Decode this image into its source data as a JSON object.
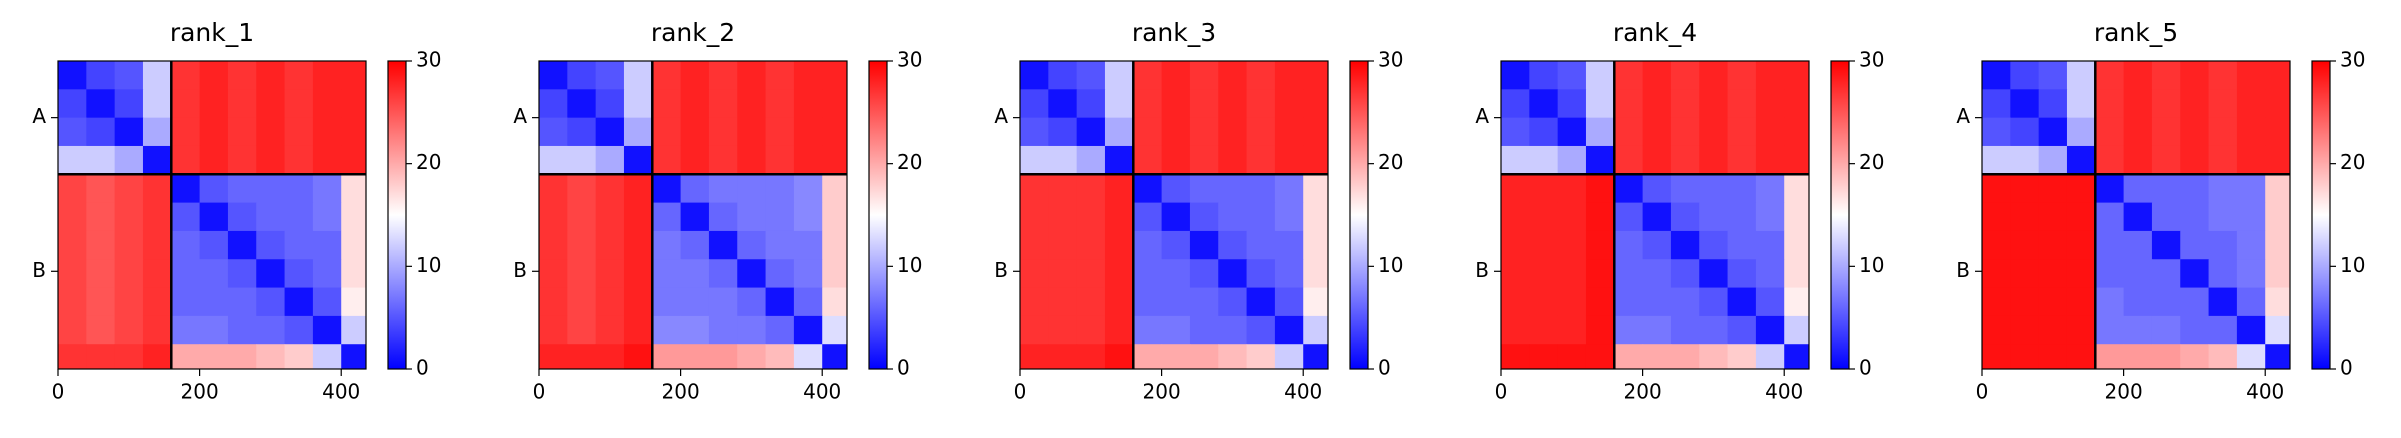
{
  "chart_data": [
    {
      "type": "heatmap",
      "title": "rank_1",
      "xlim": [
        0,
        435
      ],
      "ylim": [
        435,
        0
      ],
      "xticks": [
        0,
        200,
        400
      ],
      "yticks": [
        {
          "value": 80,
          "label": "A"
        },
        {
          "value": 297,
          "label": "B"
        }
      ],
      "chain_breaks": [
        160
      ],
      "clim": [
        0,
        30
      ],
      "cticks": [
        0,
        10,
        20,
        30
      ],
      "cmap": [
        "#0000ff",
        "#ffffff",
        "#ff0000"
      ],
      "bins": [
        0,
        40,
        80,
        120,
        160,
        200,
        240,
        280,
        320,
        360,
        400,
        435
      ],
      "values": [
        [
          1,
          4,
          5,
          12,
          27,
          28,
          27,
          28,
          27,
          28,
          28
        ],
        [
          4,
          1,
          4,
          12,
          27,
          28,
          27,
          28,
          27,
          28,
          28
        ],
        [
          5,
          4,
          1,
          10,
          27,
          28,
          27,
          28,
          27,
          28,
          28
        ],
        [
          12,
          12,
          10,
          1,
          27,
          28,
          27,
          28,
          27,
          28,
          28
        ],
        [
          26,
          25,
          26,
          27,
          1,
          5,
          6,
          6,
          6,
          7,
          17
        ],
        [
          26,
          25,
          26,
          27,
          5,
          1,
          5,
          6,
          6,
          7,
          17
        ],
        [
          26,
          25,
          26,
          27,
          6,
          5,
          1,
          5,
          6,
          6,
          17
        ],
        [
          26,
          25,
          26,
          27,
          6,
          6,
          5,
          1,
          5,
          6,
          17
        ],
        [
          26,
          25,
          26,
          27,
          6,
          6,
          6,
          5,
          1,
          5,
          16
        ],
        [
          26,
          25,
          26,
          27,
          7,
          7,
          6,
          6,
          5,
          1,
          12
        ],
        [
          27,
          27,
          27,
          28,
          20,
          20,
          20,
          19,
          18,
          12,
          1
        ]
      ]
    },
    {
      "type": "heatmap",
      "title": "rank_2",
      "xlim": [
        0,
        435
      ],
      "ylim": [
        435,
        0
      ],
      "xticks": [
        0,
        200,
        400
      ],
      "yticks": [
        {
          "value": 80,
          "label": "A"
        },
        {
          "value": 297,
          "label": "B"
        }
      ],
      "chain_breaks": [
        160
      ],
      "clim": [
        0,
        30
      ],
      "cticks": [
        0,
        10,
        20,
        30
      ],
      "cmap": [
        "#0000ff",
        "#ffffff",
        "#ff0000"
      ],
      "bins": [
        0,
        40,
        80,
        120,
        160,
        200,
        240,
        280,
        320,
        360,
        400,
        435
      ],
      "values": [
        [
          1,
          4,
          5,
          12,
          27,
          28,
          27,
          28,
          27,
          28,
          28
        ],
        [
          4,
          1,
          4,
          12,
          27,
          28,
          27,
          28,
          27,
          28,
          28
        ],
        [
          5,
          4,
          1,
          10,
          27,
          28,
          27,
          28,
          27,
          28,
          28
        ],
        [
          12,
          12,
          10,
          1,
          27,
          28,
          27,
          28,
          27,
          28,
          28
        ],
        [
          27,
          26,
          27,
          28,
          1,
          6,
          7,
          7,
          7,
          8,
          18
        ],
        [
          27,
          26,
          27,
          28,
          6,
          1,
          6,
          7,
          7,
          8,
          18
        ],
        [
          27,
          26,
          27,
          28,
          7,
          6,
          1,
          6,
          7,
          7,
          18
        ],
        [
          27,
          26,
          27,
          28,
          7,
          7,
          6,
          1,
          6,
          7,
          18
        ],
        [
          27,
          26,
          27,
          28,
          7,
          7,
          7,
          6,
          1,
          6,
          17
        ],
        [
          27,
          26,
          27,
          28,
          8,
          8,
          7,
          7,
          6,
          1,
          13
        ],
        [
          28,
          28,
          28,
          29,
          21,
          21,
          21,
          20,
          19,
          13,
          1
        ]
      ]
    },
    {
      "type": "heatmap",
      "title": "rank_3",
      "xlim": [
        0,
        435
      ],
      "ylim": [
        435,
        0
      ],
      "xticks": [
        0,
        200,
        400
      ],
      "yticks": [
        {
          "value": 80,
          "label": "A"
        },
        {
          "value": 297,
          "label": "B"
        }
      ],
      "chain_breaks": [
        160
      ],
      "clim": [
        0,
        30
      ],
      "cticks": [
        0,
        10,
        20,
        30
      ],
      "cmap": [
        "#0000ff",
        "#ffffff",
        "#ff0000"
      ],
      "bins": [
        0,
        40,
        80,
        120,
        160,
        200,
        240,
        280,
        320,
        360,
        400,
        435
      ],
      "values": [
        [
          1,
          4,
          5,
          12,
          27,
          28,
          27,
          28,
          27,
          28,
          28
        ],
        [
          4,
          1,
          4,
          12,
          27,
          28,
          27,
          28,
          27,
          28,
          28
        ],
        [
          5,
          4,
          1,
          10,
          27,
          28,
          27,
          28,
          27,
          28,
          28
        ],
        [
          12,
          12,
          10,
          1,
          27,
          28,
          27,
          28,
          27,
          28,
          28
        ],
        [
          27,
          27,
          27,
          28,
          1,
          5,
          6,
          6,
          6,
          7,
          17
        ],
        [
          27,
          27,
          27,
          28,
          5,
          1,
          5,
          6,
          6,
          7,
          17
        ],
        [
          27,
          27,
          27,
          28,
          6,
          5,
          1,
          5,
          6,
          6,
          17
        ],
        [
          27,
          27,
          27,
          28,
          6,
          6,
          5,
          1,
          5,
          6,
          17
        ],
        [
          27,
          27,
          27,
          28,
          6,
          6,
          6,
          5,
          1,
          5,
          16
        ],
        [
          27,
          27,
          27,
          28,
          7,
          7,
          6,
          6,
          5,
          1,
          12
        ],
        [
          28,
          28,
          28,
          29,
          20,
          20,
          20,
          19,
          18,
          12,
          1
        ]
      ]
    },
    {
      "type": "heatmap",
      "title": "rank_4",
      "xlim": [
        0,
        435
      ],
      "ylim": [
        435,
        0
      ],
      "xticks": [
        0,
        200,
        400
      ],
      "yticks": [
        {
          "value": 80,
          "label": "A"
        },
        {
          "value": 297,
          "label": "B"
        }
      ],
      "chain_breaks": [
        160
      ],
      "clim": [
        0,
        30
      ],
      "cticks": [
        0,
        10,
        20,
        30
      ],
      "cmap": [
        "#0000ff",
        "#ffffff",
        "#ff0000"
      ],
      "bins": [
        0,
        40,
        80,
        120,
        160,
        200,
        240,
        280,
        320,
        360,
        400,
        435
      ],
      "values": [
        [
          1,
          4,
          5,
          12,
          27,
          28,
          27,
          28,
          27,
          28,
          28
        ],
        [
          4,
          1,
          4,
          12,
          27,
          28,
          27,
          28,
          27,
          28,
          28
        ],
        [
          5,
          4,
          1,
          10,
          27,
          28,
          27,
          28,
          27,
          28,
          28
        ],
        [
          12,
          12,
          10,
          1,
          27,
          28,
          27,
          28,
          27,
          28,
          28
        ],
        [
          28,
          28,
          28,
          29,
          1,
          5,
          6,
          6,
          6,
          7,
          17
        ],
        [
          28,
          28,
          28,
          29,
          5,
          1,
          5,
          6,
          6,
          7,
          17
        ],
        [
          28,
          28,
          28,
          29,
          6,
          5,
          1,
          5,
          6,
          6,
          17
        ],
        [
          28,
          28,
          28,
          29,
          6,
          6,
          5,
          1,
          5,
          6,
          17
        ],
        [
          28,
          28,
          28,
          29,
          6,
          6,
          6,
          5,
          1,
          5,
          16
        ],
        [
          28,
          28,
          28,
          29,
          7,
          7,
          6,
          6,
          5,
          1,
          12
        ],
        [
          29,
          29,
          29,
          29,
          20,
          20,
          20,
          19,
          18,
          12,
          1
        ]
      ]
    },
    {
      "type": "heatmap",
      "title": "rank_5",
      "xlim": [
        0,
        435
      ],
      "ylim": [
        435,
        0
      ],
      "xticks": [
        0,
        200,
        400
      ],
      "yticks": [
        {
          "value": 80,
          "label": "A"
        },
        {
          "value": 297,
          "label": "B"
        }
      ],
      "chain_breaks": [
        160
      ],
      "clim": [
        0,
        30
      ],
      "cticks": [
        0,
        10,
        20,
        30
      ],
      "cmap": [
        "#0000ff",
        "#ffffff",
        "#ff0000"
      ],
      "bins": [
        0,
        40,
        80,
        120,
        160,
        200,
        240,
        280,
        320,
        360,
        400,
        435
      ],
      "values": [
        [
          1,
          4,
          5,
          12,
          27,
          28,
          27,
          28,
          27,
          28,
          28
        ],
        [
          4,
          1,
          4,
          12,
          27,
          28,
          27,
          28,
          27,
          28,
          28
        ],
        [
          5,
          4,
          1,
          10,
          27,
          28,
          27,
          28,
          27,
          28,
          28
        ],
        [
          12,
          12,
          10,
          1,
          27,
          28,
          27,
          28,
          27,
          28,
          28
        ],
        [
          29,
          29,
          29,
          29,
          1,
          6,
          6,
          6,
          7,
          7,
          18
        ],
        [
          29,
          29,
          29,
          29,
          6,
          1,
          6,
          6,
          7,
          7,
          18
        ],
        [
          29,
          29,
          29,
          29,
          6,
          6,
          1,
          6,
          6,
          7,
          18
        ],
        [
          29,
          29,
          29,
          29,
          6,
          6,
          6,
          1,
          6,
          7,
          18
        ],
        [
          29,
          29,
          29,
          29,
          7,
          6,
          6,
          6,
          1,
          6,
          17
        ],
        [
          29,
          29,
          29,
          29,
          7,
          7,
          7,
          6,
          6,
          1,
          13
        ],
        [
          29,
          29,
          29,
          29,
          21,
          21,
          21,
          20,
          19,
          13,
          1
        ]
      ]
    }
  ]
}
